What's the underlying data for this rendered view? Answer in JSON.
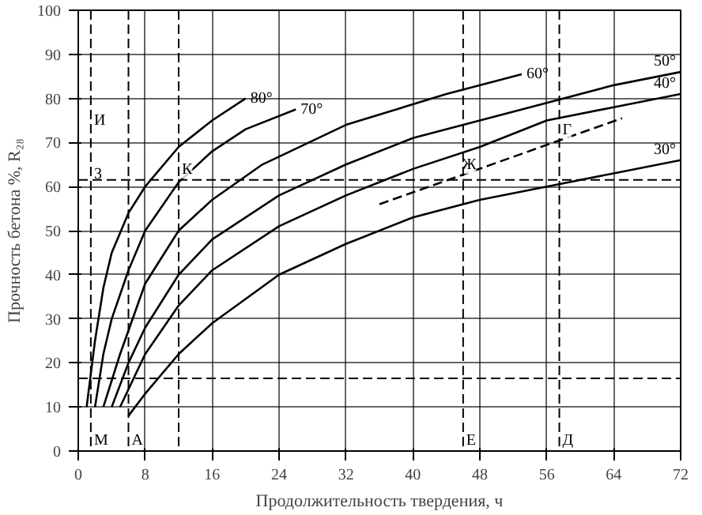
{
  "chart_data": {
    "type": "line",
    "xlabel": "Продолжительность твердения, ч",
    "ylabel": "Прочность бетона %, R₂₈",
    "xlim": [
      0,
      72
    ],
    "ylim": [
      0,
      100
    ],
    "xticks": [
      0,
      8,
      16,
      24,
      32,
      40,
      48,
      56,
      64,
      72
    ],
    "yticks": [
      0,
      10,
      20,
      30,
      40,
      50,
      60,
      70,
      80,
      90,
      100
    ],
    "grid": true,
    "marker": "none",
    "line_style": "solid",
    "series": [
      {
        "name": "80°",
        "color": "#000000",
        "x": [
          1,
          2,
          3,
          4,
          6,
          8,
          12,
          16,
          20
        ],
        "values": [
          10,
          25,
          37,
          45,
          54,
          60,
          69,
          75,
          80
        ]
      },
      {
        "name": "70°",
        "color": "#000000",
        "x": [
          2,
          3,
          4,
          6,
          8,
          12,
          16,
          20,
          26
        ],
        "values": [
          10,
          22,
          30,
          41,
          50,
          61,
          68,
          73,
          77.5
        ]
      },
      {
        "name": "60°",
        "color": "#000000",
        "x": [
          3,
          5,
          8,
          12,
          16,
          22,
          32,
          44,
          53
        ],
        "values": [
          10,
          22,
          38,
          50,
          57,
          65,
          74,
          81,
          85.5
        ]
      },
      {
        "name": "50°",
        "color": "#000000",
        "x": [
          4,
          6,
          8,
          12,
          16,
          24,
          32,
          40,
          48,
          56,
          64,
          72
        ],
        "values": [
          10,
          20,
          28,
          40,
          48,
          58,
          65,
          71,
          75,
          79,
          83,
          86
        ]
      },
      {
        "name": "40°",
        "color": "#000000",
        "x": [
          5,
          7,
          8,
          12,
          16,
          24,
          32,
          40,
          48,
          56,
          64,
          72
        ],
        "values": [
          10,
          18,
          22,
          33,
          41,
          51,
          58,
          64,
          69,
          75,
          78,
          81
        ]
      },
      {
        "name": "30°",
        "color": "#000000",
        "x": [
          6,
          8,
          12,
          16,
          24,
          32,
          40,
          48,
          56,
          64,
          72
        ],
        "values": [
          8,
          13,
          22,
          29,
          40,
          47,
          53,
          57,
          60,
          63,
          66
        ]
      },
      {
        "color": "#000000",
        "line_style": "dashed",
        "x": [
          36,
          65
        ],
        "values": [
          56,
          75.5
        ]
      }
    ],
    "ref_lines": [
      {
        "axis": "y",
        "value": 61.5,
        "line_style": "dashed"
      },
      {
        "axis": "y",
        "value": 16.5,
        "line_style": "dashed"
      },
      {
        "axis": "x",
        "value": 1.5,
        "line_style": "dashed"
      },
      {
        "axis": "x",
        "value": 6,
        "line_style": "dashed"
      },
      {
        "axis": "x",
        "value": 12,
        "line_style": "dashed"
      },
      {
        "axis": "x",
        "value": 46,
        "line_style": "dashed"
      },
      {
        "axis": "x",
        "value": 57.5,
        "line_style": "dashed"
      }
    ],
    "annotations": [
      {
        "text": "И",
        "x": 1.5,
        "y": 72.5
      },
      {
        "text": "3",
        "x": 1.5,
        "y": 61.5
      },
      {
        "text": "К",
        "x": 12,
        "y": 61.5
      },
      {
        "text": "Г",
        "x": 57.5,
        "y": 70.5
      },
      {
        "text": "Ж",
        "x": 45.5,
        "y": 62.5
      },
      {
        "text": "Е",
        "x": 46,
        "y": 0
      },
      {
        "text": "Д",
        "x": 57.5,
        "y": 0
      },
      {
        "text": "М",
        "x": 1.5,
        "y": 0
      },
      {
        "text": "А",
        "x": 6,
        "y": 0
      }
    ]
  }
}
